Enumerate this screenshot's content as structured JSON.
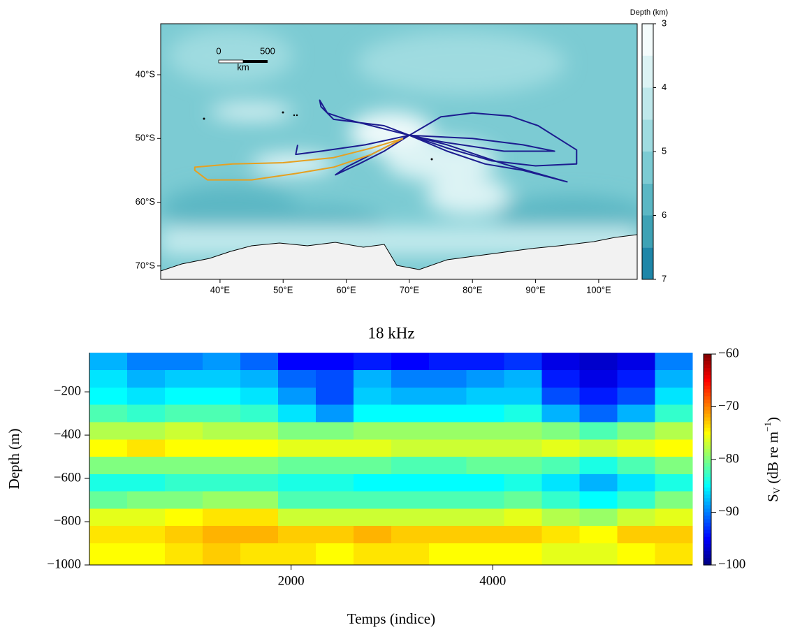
{
  "chart_data": [
    {
      "type": "map",
      "xlim": [
        30.6,
        106.1
      ],
      "ylim": [
        -72.1,
        -32
      ],
      "xticks": [
        {
          "value": 40,
          "label": "40°E"
        },
        {
          "value": 50,
          "label": "50°E"
        },
        {
          "value": 60,
          "label": "60°E"
        },
        {
          "value": 70,
          "label": "70°E"
        },
        {
          "value": 80,
          "label": "80°E"
        },
        {
          "value": 90,
          "label": "90°E"
        },
        {
          "value": 100,
          "label": "100°E"
        }
      ],
      "yticks": [
        {
          "value": -40,
          "label": "40°S"
        },
        {
          "value": -50,
          "label": "50°S"
        },
        {
          "value": -60,
          "label": "60°S"
        },
        {
          "value": -70,
          "label": "70°S"
        }
      ],
      "colorbar_label": "Depth (km)",
      "colorbar_lim": [
        3,
        7
      ],
      "colorbar_ticks": [
        3,
        4,
        5,
        6,
        7
      ],
      "colorbar_colors": [
        "#f4fcfc",
        "#dcf3f4",
        "#bfe8eb",
        "#9fdbe0",
        "#7ccbd3",
        "#5bb7c4",
        "#3ea2b5",
        "#1e86a8"
      ],
      "scalebar": {
        "ticks": [
          0,
          500
        ],
        "unit": "km"
      },
      "series": [
        {
          "color": "#1c1c8f",
          "x": [
            70,
            66,
            62,
            58,
            56,
            55.8,
            57,
            60,
            64,
            68,
            70
          ],
          "y": [
            -49.5,
            -48,
            -47.5,
            -47,
            -45,
            -44,
            -46,
            -47,
            -48,
            -49,
            -49.5
          ]
        },
        {
          "color": "#1c1c8f",
          "x": [
            70,
            65,
            60,
            58.3,
            62,
            66,
            70
          ],
          "y": [
            -49.5,
            -52,
            -54.5,
            -55.7,
            -54,
            -52,
            -49.5
          ]
        },
        {
          "color": "#1c1c8f",
          "x": [
            70,
            63,
            56,
            52,
            52.3
          ],
          "y": [
            -49.5,
            -51,
            -52,
            -52.5,
            -51
          ]
        },
        {
          "color": "#1c1c8f",
          "x": [
            70,
            75,
            80,
            86,
            90.4,
            96.5,
            96.5,
            90,
            83,
            76,
            70
          ],
          "y": [
            -49.5,
            -46.6,
            -46,
            -46.5,
            -48,
            -51.8,
            -54,
            -54.3,
            -53.5,
            -51.5,
            -49.5
          ]
        },
        {
          "color": "#1c1c8f",
          "x": [
            70,
            76,
            82,
            88,
            95,
            85,
            76,
            70
          ],
          "y": [
            -49.5,
            -52,
            -54,
            -55,
            -56.8,
            -54,
            -51,
            -49.5
          ]
        },
        {
          "color": "#1c1c8f",
          "x": [
            70,
            80,
            88,
            93,
            85,
            75,
            70
          ],
          "y": [
            -49.5,
            -50,
            -51,
            -52,
            -52,
            -50.5,
            -49.5
          ]
        },
        {
          "color": "#e6a020",
          "x": [
            69,
            64,
            58,
            50,
            42,
            36,
            36,
            38,
            45,
            52,
            58,
            64,
            69
          ],
          "y": [
            -50,
            -51.5,
            -53,
            -53.8,
            -54,
            -54.5,
            -55,
            -56.5,
            -56.5,
            -55.5,
            -54.5,
            -52.5,
            -50
          ]
        }
      ]
    },
    {
      "type": "heatmap",
      "title": "18 kHz",
      "xlabel": "Temps (indice)",
      "ylabel": "Depth (m)",
      "xlim": [
        0,
        5980
      ],
      "ylim": [
        -1000,
        -19
      ],
      "xticks": [
        2000,
        4000
      ],
      "yticks": [
        {
          "value": -1000,
          "label": "−1000"
        },
        {
          "value": -800,
          "label": "−800"
        },
        {
          "value": -600,
          "label": "−600"
        },
        {
          "value": -400,
          "label": "−400"
        },
        {
          "value": -200,
          "label": "−200"
        }
      ],
      "colormap": "jet",
      "clim": [
        -100,
        -60
      ],
      "cticks": [
        {
          "value": -100,
          "label": "−100"
        },
        {
          "value": -90,
          "label": "−90"
        },
        {
          "value": -80,
          "label": "−80"
        },
        {
          "value": -70,
          "label": "−70"
        },
        {
          "value": -60,
          "label": "−60"
        }
      ],
      "colorbar_label": {
        "symbol": "S",
        "subscript": "V",
        "unit": " (dB re m",
        "superscript": "−1",
        "close": ")"
      },
      "xbins": [
        0,
        374,
        748,
        1122,
        1496,
        1870,
        2244,
        2618,
        2992,
        3366,
        3740,
        4114,
        4488,
        4862,
        5236,
        5610,
        5980
      ],
      "ybins": [
        -19,
        -100,
        -180,
        -260,
        -340,
        -420,
        -500,
        -580,
        -660,
        -740,
        -820,
        -900,
        -1000
      ],
      "values": [
        [
          -88,
          -90,
          -90,
          -89,
          -91,
          -95,
          -95,
          -94,
          -95,
          -94,
          -94,
          -93,
          -96,
          -97,
          -96,
          -90
        ],
        [
          -86,
          -88,
          -87,
          -87,
          -88,
          -91,
          -92,
          -88,
          -90,
          -90,
          -89,
          -88,
          -94,
          -96,
          -94,
          -88
        ],
        [
          -85,
          -86,
          -85,
          -85,
          -86,
          -89,
          -92,
          -87,
          -88,
          -88,
          -87,
          -87,
          -92,
          -94,
          -92,
          -86
        ],
        [
          -82,
          -83,
          -82,
          -82,
          -83,
          -86,
          -89,
          -85,
          -85,
          -85,
          -85,
          -84,
          -88,
          -91,
          -88,
          -83
        ],
        [
          -78,
          -78,
          -77,
          -78,
          -78,
          -80,
          -80,
          -79,
          -79,
          -79,
          -79,
          -79,
          -80,
          -82,
          -80,
          -78
        ],
        [
          -75,
          -74,
          -75,
          -75,
          -75,
          -76,
          -76,
          -76,
          -77,
          -77,
          -77,
          -77,
          -76,
          -77,
          -76,
          -75
        ],
        [
          -80,
          -80,
          -80,
          -80,
          -80,
          -81,
          -81,
          -81,
          -82,
          -82,
          -81,
          -81,
          -82,
          -84,
          -82,
          -80
        ],
        [
          -84,
          -84,
          -83,
          -83,
          -83,
          -84,
          -84,
          -85,
          -85,
          -85,
          -85,
          -84,
          -86,
          -88,
          -86,
          -84
        ],
        [
          -81,
          -80,
          -80,
          -79,
          -79,
          -82,
          -82,
          -82,
          -82,
          -82,
          -82,
          -81,
          -83,
          -85,
          -83,
          -80
        ],
        [
          -76,
          -76,
          -75,
          -74,
          -74,
          -77,
          -77,
          -77,
          -77,
          -77,
          -77,
          -76,
          -78,
          -79,
          -77,
          -76
        ],
        [
          -74,
          -74,
          -73,
          -72,
          -72,
          -73,
          -73,
          -72,
          -73,
          -73,
          -73,
          -73,
          -74,
          -75,
          -73,
          -73
        ],
        [
          -75,
          -75,
          -74,
          -73,
          -74,
          -74,
          -75,
          -74,
          -74,
          -75,
          -75,
          -75,
          -76,
          -76,
          -75,
          -74
        ]
      ]
    }
  ]
}
